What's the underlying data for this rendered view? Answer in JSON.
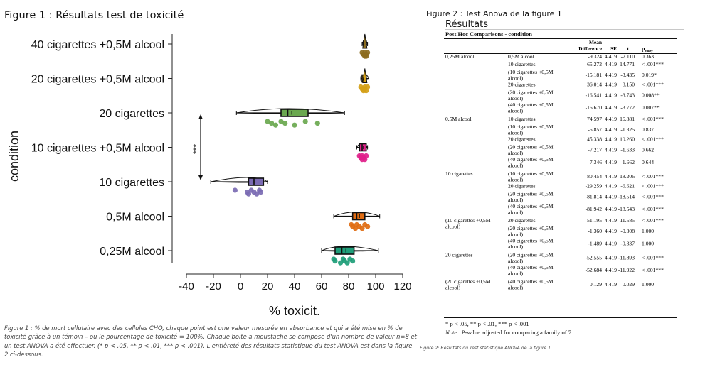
{
  "figure1": {
    "title": "Figure 1 : Résultats test de toxicité",
    "caption": "Figure 1 : % de mort cellulaire avec des cellules CHO, chaque point est une valeur mesurée en absorbance et qui a été mise en % de toxicité grâce à un témoin – ou le pourcentage de toxicité = 100%. Chaque boite a moustache se compose d'un nombre de valeur n=8 et un test ANOVA a été effectuer. (* p < .05, ** p < .01, *** p < .001). L'entièreté des résultats statistique du test ANOVA est dans la figure 2 ci-dessous.",
    "significance": "***"
  },
  "chart_data": {
    "type": "boxplot",
    "xlabel": "% toxicit.",
    "ylabel": "condition",
    "xlim": [
      -40,
      120
    ],
    "xticks": [
      -40,
      -20,
      0,
      20,
      40,
      60,
      80,
      100,
      120
    ],
    "categories": [
      "40 cigarettes +0,5M alcool",
      "20 cigarettes +0,5M alcool",
      "20 cigarettes",
      "10 cigarettes +0,5M alcool",
      "10 cigarettes",
      "0,5M alcool",
      "0,25M alcool"
    ],
    "colors": [
      "#8c6d1f",
      "#d4a017",
      "#6aa84f",
      "#e0218a",
      "#7b6bb3",
      "#e06c12",
      "#1f9e7a"
    ],
    "series": [
      {
        "condition": "40 cigarettes +0,5M alcool",
        "whisker": [
          90,
          94
        ],
        "box": [
          91,
          93
        ],
        "median": 92,
        "mean": 92,
        "points": [
          90,
          91,
          92,
          92,
          93,
          93,
          94,
          91
        ]
      },
      {
        "condition": "20 cigarettes +0,5M alcool",
        "whisker": [
          89,
          95
        ],
        "box": [
          90,
          93
        ],
        "median": 92,
        "mean": 92,
        "points": [
          89,
          90,
          91,
          92,
          92,
          93,
          94,
          91
        ]
      },
      {
        "condition": "20 cigarettes",
        "whisker": [
          -3,
          77
        ],
        "box": [
          30,
          50
        ],
        "median": 35,
        "mean": 38,
        "points": [
          20,
          23,
          26,
          30,
          33,
          40,
          48,
          57
        ]
      },
      {
        "condition": "10 cigarettes +0,5M alcool",
        "whisker": [
          86,
          94
        ],
        "box": [
          88,
          93
        ],
        "median": 90,
        "mean": 91,
        "points": [
          88,
          89,
          90,
          90,
          91,
          92,
          93,
          90
        ]
      },
      {
        "condition": "10 cigarettes",
        "whisker": [
          -22,
          20
        ],
        "box": [
          6,
          17
        ],
        "median": 10,
        "mean": 10,
        "points": [
          -4,
          5,
          6,
          8,
          10,
          12,
          14,
          15
        ]
      },
      {
        "condition": "0,5M alcool",
        "whisker": [
          69,
          103
        ],
        "box": [
          83,
          92
        ],
        "median": 86,
        "mean": 88,
        "points": [
          82,
          83,
          85,
          86,
          88,
          90,
          92,
          94
        ]
      },
      {
        "condition": "0,25M alcool",
        "whisker": [
          60,
          102
        ],
        "box": [
          70,
          84
        ],
        "median": 75,
        "mean": 78,
        "points": [
          69,
          70,
          74,
          76,
          77,
          79,
          81,
          83
        ]
      }
    ],
    "annotation": {
      "text": "***",
      "between": [
        "20 cigarettes",
        "10 cigarettes"
      ]
    }
  },
  "figure2": {
    "title": "Figure 2 : Test Anova de la figure 1",
    "results_title": "Résultats",
    "posthoc_title": "Post Hoc Comparisons - condition",
    "headers": {
      "mean_difference_1": "Mean",
      "mean_difference_2": "Difference",
      "se": "SE",
      "t": "t",
      "p": "p",
      "p_sub": "tukey"
    },
    "groups": [
      {
        "label": [
          "0,25M alcool"
        ],
        "rows": [
          {
            "cmp": [
              "0,5M alcool"
            ],
            "md": "-9.324",
            "se": "4.419",
            "t": "-2.110",
            "p": "0.363"
          },
          {
            "cmp": [
              "10 cigarettes"
            ],
            "md": "65.272",
            "se": "4.419",
            "t": "14.771",
            "p": "< .001***"
          },
          {
            "cmp": [
              "(10 cigarettes +0,5M",
              "alcool)"
            ],
            "md": "-15.181",
            "se": "4.419",
            "t": "-3.435",
            "p": "0.019*"
          },
          {
            "cmp": [
              "20 cigarettes"
            ],
            "md": "36.014",
            "se": "4.419",
            "t": "8.150",
            "p": "< .001***"
          },
          {
            "cmp": [
              "(20 cigarettes +0,5M",
              "alcool)"
            ],
            "md": "-16.541",
            "se": "4.419",
            "t": "-3.743",
            "p": "0.008**"
          },
          {
            "cmp": [
              "(40 cigarettes +0,5M",
              "alcool)"
            ],
            "md": "-16.670",
            "se": "4.419",
            "t": "-3.772",
            "p": "0.007**"
          }
        ]
      },
      {
        "label": [
          "0,5M alcool"
        ],
        "rows": [
          {
            "cmp": [
              "10 cigarettes"
            ],
            "md": "74.597",
            "se": "4.419",
            "t": "16.881",
            "p": "< .001***"
          },
          {
            "cmp": [
              "(10 cigarettes +0,5M",
              "alcool)"
            ],
            "md": "-5.857",
            "se": "4.419",
            "t": "-1.325",
            "p": "0.837"
          },
          {
            "cmp": [
              "20 cigarettes"
            ],
            "md": "45.338",
            "se": "4.419",
            "t": "10.260",
            "p": "< .001***"
          },
          {
            "cmp": [
              "(20 cigarettes +0,5M",
              "alcool)"
            ],
            "md": "-7.217",
            "se": "4.419",
            "t": "-1.633",
            "p": "0.662"
          },
          {
            "cmp": [
              "(40 cigarettes +0,5M",
              "alcool)"
            ],
            "md": "-7.346",
            "se": "4.419",
            "t": "-1.662",
            "p": "0.644"
          }
        ]
      },
      {
        "label": [
          "10 cigarettes"
        ],
        "rows": [
          {
            "cmp": [
              "(10 cigarettes +0,5M",
              "alcool)"
            ],
            "md": "-80.454",
            "se": "4.419",
            "t": "-18.206",
            "p": "< .001***"
          },
          {
            "cmp": [
              "20 cigarettes"
            ],
            "md": "-29.259",
            "se": "4.419",
            "t": "-6.621",
            "p": "< .001***"
          },
          {
            "cmp": [
              "(20 cigarettes +0,5M",
              "alcool)"
            ],
            "md": "-81.814",
            "se": "4.419",
            "t": "-18.514",
            "p": "< .001***"
          },
          {
            "cmp": [
              "(40 cigarettes +0,5M",
              "alcool)"
            ],
            "md": "-81.942",
            "se": "4.419",
            "t": "-18.543",
            "p": "< .001***"
          }
        ]
      },
      {
        "label": [
          "(10 cigarettes +0,5M",
          "alcool)"
        ],
        "rows": [
          {
            "cmp": [
              "20 cigarettes"
            ],
            "md": "51.195",
            "se": "4.419",
            "t": "11.585",
            "p": "< .001***"
          },
          {
            "cmp": [
              "(20 cigarettes +0,5M",
              "alcool)"
            ],
            "md": "-1.360",
            "se": "4.419",
            "t": "-0.308",
            "p": "1.000"
          },
          {
            "cmp": [
              "(40 cigarettes +0,5M",
              "alcool)"
            ],
            "md": "-1.489",
            "se": "4.419",
            "t": "-0.337",
            "p": "1.000"
          }
        ]
      },
      {
        "label": [
          "20 cigarettes"
        ],
        "rows": [
          {
            "cmp": [
              "(20 cigarettes +0,5M",
              "alcool)"
            ],
            "md": "-52.555",
            "se": "4.419",
            "t": "-11.893",
            "p": "< .001***"
          },
          {
            "cmp": [
              "(40 cigarettes +0,5M",
              "alcool)"
            ],
            "md": "-52.684",
            "se": "4.419",
            "t": "-11.922",
            "p": "< .001***"
          }
        ]
      },
      {
        "label": [
          "(20 cigarettes +0,5M",
          "alcool)"
        ],
        "rows": [
          {
            "cmp": [
              "(40 cigarettes +0,5M",
              "alcool)"
            ],
            "md": "-0.129",
            "se": "4.419",
            "t": "-0.029",
            "p": "1.000"
          }
        ]
      }
    ],
    "footnote": "* p < .05, ** p < .01, *** p < .001",
    "note_label": "Note.",
    "note_text": "P-value adjusted for comparing a family of 7",
    "caption": "Figure 2: Résultats du Test statistique ANOVA de la figure 1"
  }
}
